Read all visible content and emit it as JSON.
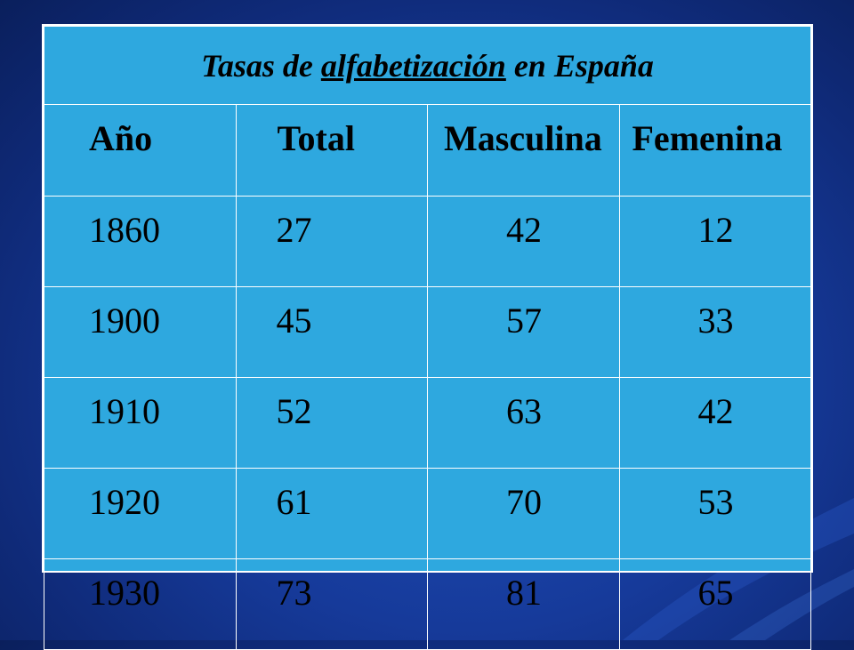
{
  "table": {
    "title_pre": "Tasas de ",
    "title_underlined": "alfabetización",
    "title_post": " en España",
    "headers": [
      "Año",
      "Total",
      "Masculina",
      "Femenina"
    ],
    "rows": [
      [
        "1860",
        "27",
        "42",
        "12"
      ],
      [
        "1900",
        "45",
        "57",
        "33"
      ],
      [
        "1910",
        "52",
        "63",
        "42"
      ],
      [
        "1920",
        "61",
        "70",
        "53"
      ],
      [
        "1930",
        "73",
        "81",
        "65"
      ]
    ]
  },
  "colors": {
    "background": "#163a9a",
    "table_fill": "#2ea8df",
    "grid": "#ffffff",
    "text": "#000000"
  }
}
